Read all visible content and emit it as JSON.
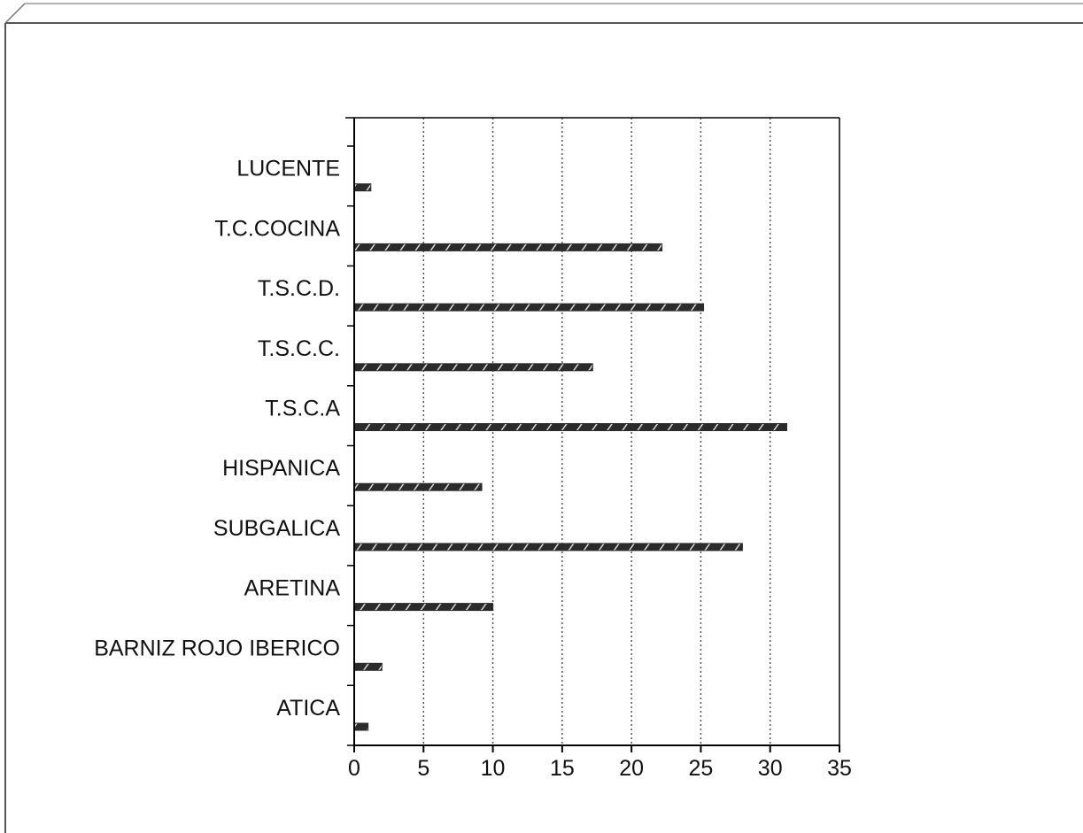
{
  "chart_data": {
    "type": "bar",
    "orientation": "horizontal",
    "categories": [
      "ATICA",
      "BARNIZ ROJO IBERICO",
      "ARETINA",
      "SUBGALICA",
      "HISPANICA",
      "T.S.C.A",
      "T.S.C.C.",
      "T.S.C.D.",
      "T.C.COCINA",
      "LUCENTE"
    ],
    "values": [
      1,
      2,
      10,
      28,
      9.2,
      31.2,
      17.2,
      25.2,
      22.2,
      1.2
    ],
    "xlim": [
      0,
      35
    ],
    "x_ticks": [
      0,
      5,
      10,
      15,
      20,
      25,
      30,
      35
    ],
    "grid": "vertical dotted",
    "legend": "none",
    "title": "",
    "xlabel": "",
    "ylabel": ""
  },
  "colors": {
    "bar_fill": "#2b2b2b",
    "bar_hatch": "#d8d8d8",
    "axis": "#000000",
    "grid": "#555555"
  }
}
